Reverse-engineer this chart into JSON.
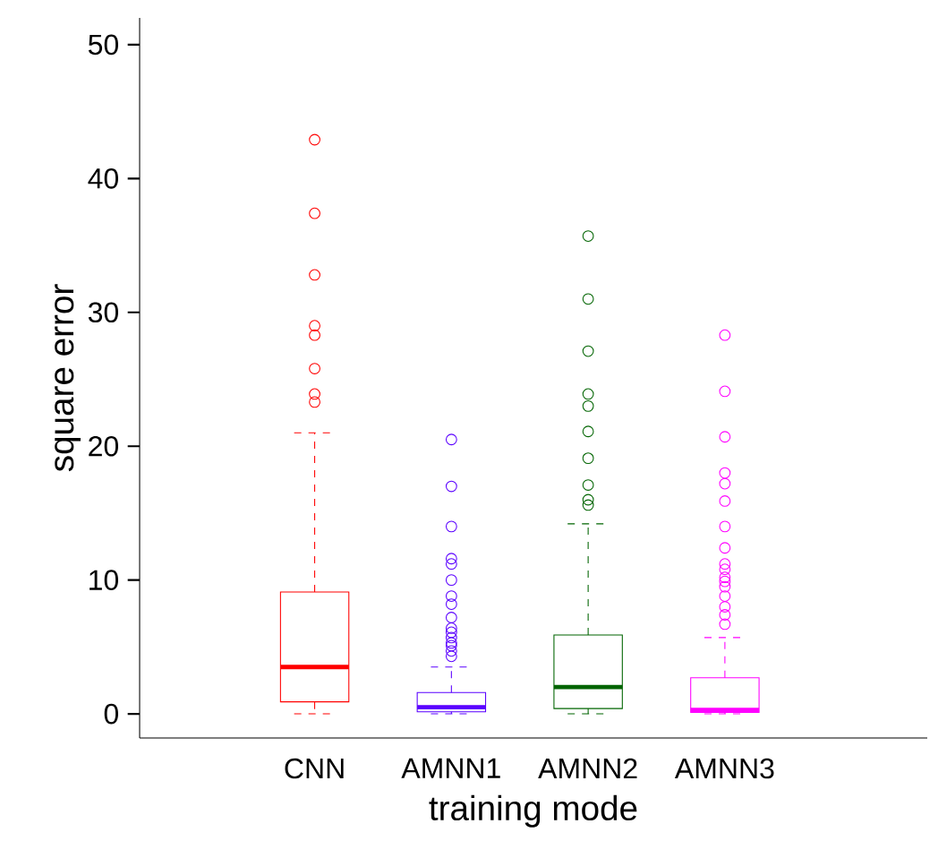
{
  "chart_data": {
    "type": "box",
    "xlabel": "training mode",
    "ylabel": "square error",
    "categories": [
      "CNN",
      "AMNN1",
      "AMNN2",
      "AMNN3"
    ],
    "colors": [
      "#ff0000",
      "#5a00ff",
      "#006400",
      "#ff00ff"
    ],
    "marker": "circle",
    "ylim": [
      -1.8,
      52
    ],
    "yticks": [
      0,
      10,
      20,
      30,
      40,
      50
    ],
    "boxes": [
      {
        "low": 0,
        "q1": 0.9,
        "median": 3.5,
        "q3": 9.1,
        "high": 21.0,
        "outliers": [
          42.9,
          37.4,
          32.8,
          29.0,
          28.3,
          25.8,
          23.9,
          23.3
        ]
      },
      {
        "low": 0,
        "q1": 0.15,
        "median": 0.5,
        "q3": 1.6,
        "high": 3.5,
        "outliers": [
          20.5,
          17.0,
          14.0,
          11.6,
          11.2,
          10.0,
          8.8,
          8.2,
          7.2,
          6.4,
          6.1,
          5.7,
          5.3,
          5.1,
          4.7,
          4.3
        ]
      },
      {
        "low": 0,
        "q1": 0.4,
        "median": 2.0,
        "q3": 5.9,
        "high": 14.2,
        "outliers": [
          35.7,
          31.0,
          27.1,
          23.9,
          23.0,
          21.1,
          19.1,
          17.1,
          16.0,
          15.6
        ]
      },
      {
        "low": 0,
        "q1": 0.1,
        "median": 0.3,
        "q3": 2.7,
        "high": 5.7,
        "outliers": [
          28.3,
          24.1,
          20.7,
          18.0,
          17.2,
          15.9,
          14.0,
          12.4,
          11.2,
          10.8,
          10.2,
          9.9,
          9.5,
          8.8,
          8.0,
          7.4,
          6.7
        ]
      }
    ]
  }
}
